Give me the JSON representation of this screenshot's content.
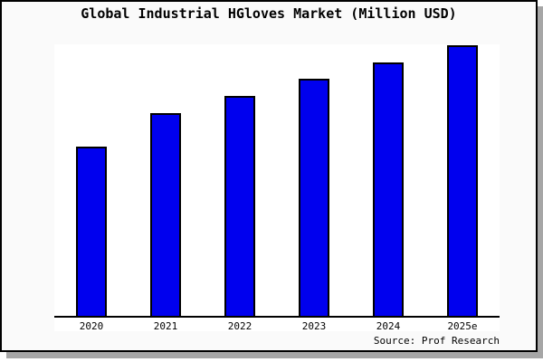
{
  "chart_data": {
    "type": "bar",
    "title": "Global Industrial HGloves Market (Million USD)",
    "categories": [
      "2020",
      "2021",
      "2022",
      "2023",
      "2024",
      "2025e"
    ],
    "values": [
      62.8,
      75.1,
      81.4,
      87.7,
      93.7,
      100
    ],
    "values_note": "no y-axis scale or data labels shown; values are relative bar heights as % of tallest (2025e) bar",
    "xlabel": "",
    "ylabel": "",
    "ylim": [
      0,
      100
    ],
    "grid": false,
    "legend": null,
    "bar_color": "#0000ee",
    "bar_edge_color": "#000000"
  },
  "footer": {
    "source": "Source: Prof Research"
  },
  "colors": {
    "frame_background": "#fafafa",
    "plot_background": "#ffffff",
    "border": "#000000",
    "shadow": "#a6a6a6",
    "axis": "#000000",
    "text": "#000000"
  }
}
